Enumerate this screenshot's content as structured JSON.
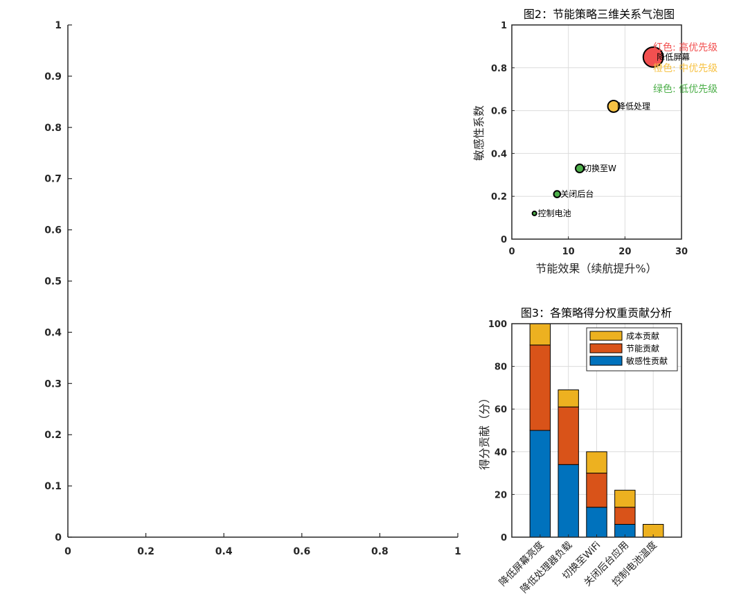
{
  "chart_data": [
    {
      "type": "scatter",
      "id": "empty-axes",
      "title": "",
      "xlabel": "",
      "ylabel": "",
      "xlim": [
        0,
        1
      ],
      "ylim": [
        0,
        1
      ],
      "xticks": [
        "0",
        "0.2",
        "0.4",
        "0.6",
        "0.8",
        "1"
      ],
      "yticks": [
        "0",
        "0.1",
        "0.2",
        "0.3",
        "0.4",
        "0.5",
        "0.6",
        "0.7",
        "0.8",
        "0.9",
        "1"
      ],
      "grid": false,
      "points": []
    },
    {
      "type": "bubble",
      "id": "fig2",
      "title": "图2：节能策略三维关系气泡图",
      "xlabel": "节能效果（续航提升%）",
      "ylabel": "敏感性系数",
      "xlim": [
        0,
        30
      ],
      "ylim": [
        0,
        1
      ],
      "xticks": [
        "0",
        "10",
        "20",
        "30"
      ],
      "yticks": [
        "0",
        "0.2",
        "0.4",
        "0.6",
        "0.8",
        "1"
      ],
      "grid": true,
      "points": [
        {
          "label": "降低屏幕",
          "x": 25,
          "y": 0.85,
          "size": 24,
          "color": "#f25050"
        },
        {
          "label": "降低处理",
          "x": 18,
          "y": 0.62,
          "size": 14,
          "color": "#f7c244"
        },
        {
          "label": "切换至W",
          "x": 12,
          "y": 0.33,
          "size": 10,
          "color": "#4daf4a"
        },
        {
          "label": "关闭后台",
          "x": 8,
          "y": 0.21,
          "size": 8,
          "color": "#4daf4a"
        },
        {
          "label": "控制电池",
          "x": 4,
          "y": 0.12,
          "size": 4,
          "color": "#4daf4a"
        }
      ],
      "legend": [
        {
          "text": "红色: 高优先级",
          "color": "#f25050"
        },
        {
          "text": "橙色: 中优先级",
          "color": "#f7c244"
        },
        {
          "text": "绿色: 低优先级",
          "color": "#4daf4a"
        }
      ]
    },
    {
      "type": "bar",
      "stacked": true,
      "id": "fig3",
      "title": "图3：各策略得分权重贡献分析",
      "xlabel": "",
      "ylabel": "得分贡献（分）",
      "ylim": [
        0,
        100
      ],
      "yticks": [
        "0",
        "20",
        "40",
        "60",
        "80",
        "100"
      ],
      "grid": true,
      "categories": [
        "降低屏幕亮度",
        "降低处理器负载",
        "切换至WiFi",
        "关闭后台应用",
        "控制电池温度"
      ],
      "series": [
        {
          "name": "敏感性贡献",
          "color": "#0072bd",
          "values": [
            50,
            34,
            14,
            6,
            0
          ]
        },
        {
          "name": "节能贡献",
          "color": "#d95319",
          "values": [
            40,
            27,
            16,
            8,
            0
          ]
        },
        {
          "name": "成本贡献",
          "color": "#edb120",
          "values": [
            10,
            8,
            10,
            8,
            6
          ]
        }
      ],
      "legend_order": [
        "成本贡献",
        "节能贡献",
        "敏感性贡献"
      ],
      "legend_position": "top-right"
    }
  ]
}
